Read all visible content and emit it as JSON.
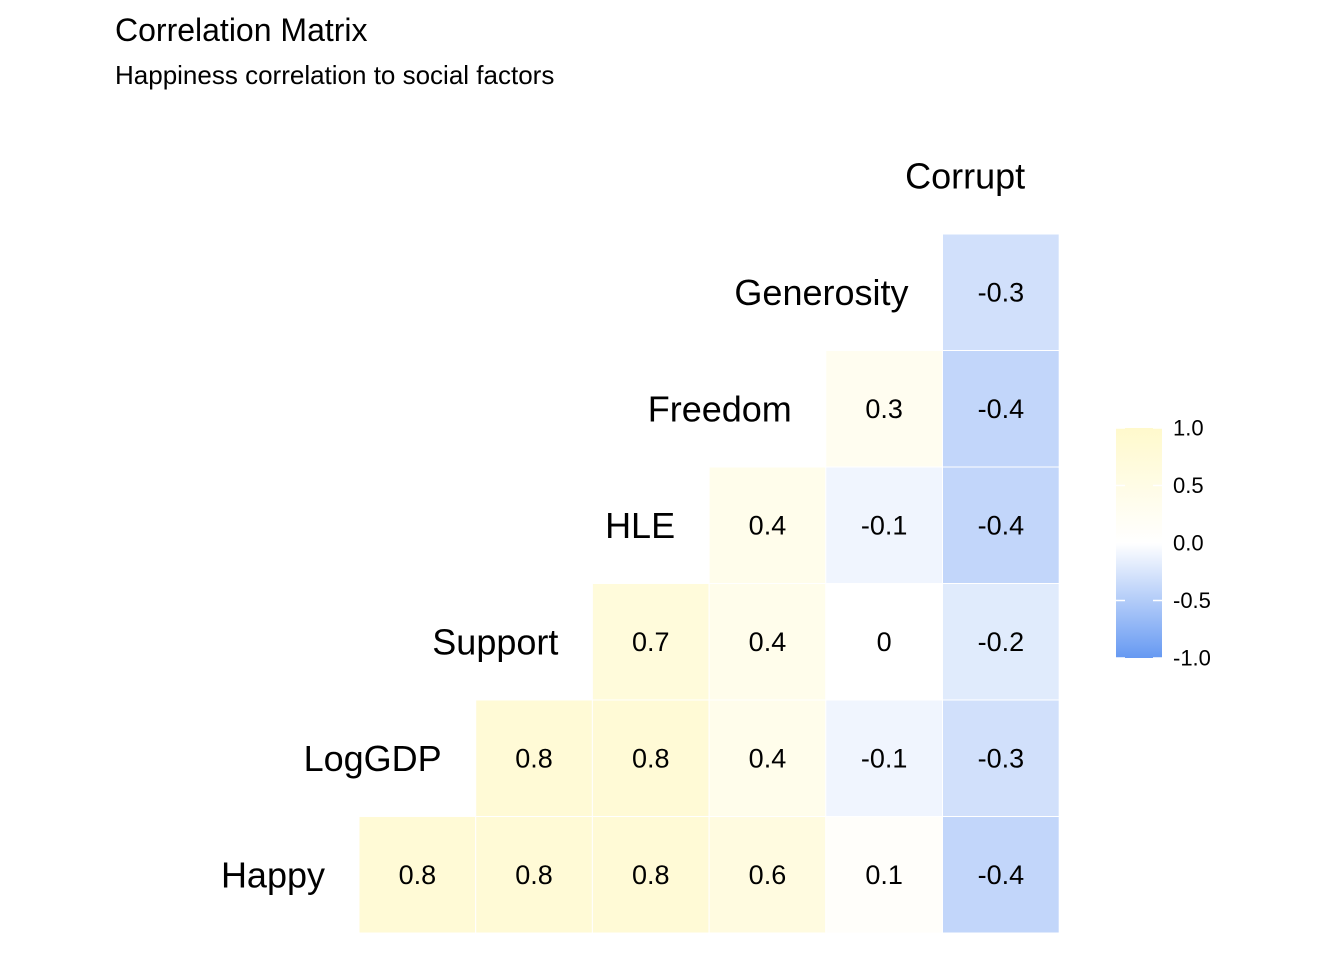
{
  "chart_data": {
    "type": "heatmap",
    "title": "Correlation Matrix",
    "subtitle": "Happiness correlation to social factors",
    "variables": [
      "Happy",
      "LogGDP",
      "Support",
      "HLE",
      "Freedom",
      "Generosity",
      "Corrupt"
    ],
    "cells": [
      {
        "row": "Happy",
        "col": "LogGDP",
        "value": 0.8,
        "label": "0.8"
      },
      {
        "row": "Happy",
        "col": "Support",
        "value": 0.8,
        "label": "0.8"
      },
      {
        "row": "Happy",
        "col": "HLE",
        "value": 0.8,
        "label": "0.8"
      },
      {
        "row": "Happy",
        "col": "Freedom",
        "value": 0.6,
        "label": "0.6"
      },
      {
        "row": "Happy",
        "col": "Generosity",
        "value": 0.1,
        "label": "0.1"
      },
      {
        "row": "Happy",
        "col": "Corrupt",
        "value": -0.4,
        "label": "-0.4"
      },
      {
        "row": "LogGDP",
        "col": "Support",
        "value": 0.8,
        "label": "0.8"
      },
      {
        "row": "LogGDP",
        "col": "HLE",
        "value": 0.8,
        "label": "0.8"
      },
      {
        "row": "LogGDP",
        "col": "Freedom",
        "value": 0.4,
        "label": "0.4"
      },
      {
        "row": "LogGDP",
        "col": "Generosity",
        "value": -0.1,
        "label": "-0.1"
      },
      {
        "row": "LogGDP",
        "col": "Corrupt",
        "value": -0.3,
        "label": "-0.3"
      },
      {
        "row": "Support",
        "col": "HLE",
        "value": 0.7,
        "label": "0.7"
      },
      {
        "row": "Support",
        "col": "Freedom",
        "value": 0.4,
        "label": "0.4"
      },
      {
        "row": "Support",
        "col": "Generosity",
        "value": 0.0,
        "label": "0"
      },
      {
        "row": "Support",
        "col": "Corrupt",
        "value": -0.2,
        "label": "-0.2"
      },
      {
        "row": "HLE",
        "col": "Freedom",
        "value": 0.4,
        "label": "0.4"
      },
      {
        "row": "HLE",
        "col": "Generosity",
        "value": -0.1,
        "label": "-0.1"
      },
      {
        "row": "HLE",
        "col": "Corrupt",
        "value": -0.4,
        "label": "-0.4"
      },
      {
        "row": "Freedom",
        "col": "Generosity",
        "value": 0.3,
        "label": "0.3"
      },
      {
        "row": "Freedom",
        "col": "Corrupt",
        "value": -0.4,
        "label": "-0.4"
      },
      {
        "row": "Generosity",
        "col": "Corrupt",
        "value": -0.3,
        "label": "-0.3"
      }
    ],
    "color_scale": {
      "low": "#6699f2",
      "mid": "#ffffff",
      "high": "#fff9cc",
      "limits": [
        -1,
        1
      ]
    },
    "legend": {
      "position": "right",
      "ticks": [
        1.0,
        0.5,
        0.0,
        -0.5,
        -1.0
      ],
      "tick_labels": [
        "1.0",
        "0.5",
        "0.0",
        "-0.5",
        "-1.0"
      ]
    }
  }
}
